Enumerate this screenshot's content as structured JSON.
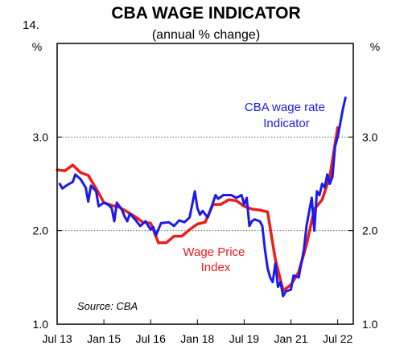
{
  "figure_number": "14.",
  "chart_data": {
    "type": "line",
    "title": "CBA WAGE INDICATOR",
    "subtitle": "(annual % change)",
    "y_unit_left": "%",
    "y_unit_right": "%",
    "ylim": [
      1.0,
      4.0
    ],
    "yticks": [
      "1.0",
      "2.0",
      "3.0"
    ],
    "xlim": [
      "2013-07",
      "2023-01"
    ],
    "xtick_labels": [
      "Jul 13",
      "Jan 15",
      "Jul 16",
      "Jan 18",
      "Jul 19",
      "Jan 21",
      "Jul 22"
    ],
    "xtick_dates": [
      "2013-07",
      "2015-01",
      "2016-07",
      "2018-01",
      "2019-07",
      "2021-01",
      "2022-07"
    ],
    "grid": "dotted horizontal at 2.0 and 3.0",
    "source": "Source: CBA",
    "series": [
      {
        "name": "Wage Price Index",
        "label_lines": [
          "Wage Price",
          "Index"
        ],
        "color": "#ee1c1c",
        "points": [
          [
            "2013-07",
            2.65
          ],
          [
            "2013-10",
            2.64
          ],
          [
            "2014-01",
            2.7
          ],
          [
            "2014-04",
            2.62
          ],
          [
            "2014-07",
            2.59
          ],
          [
            "2014-10",
            2.45
          ],
          [
            "2015-01",
            2.3
          ],
          [
            "2015-04",
            2.27
          ],
          [
            "2015-07",
            2.25
          ],
          [
            "2015-10",
            2.2
          ],
          [
            "2016-01",
            2.15
          ],
          [
            "2016-04",
            2.09
          ],
          [
            "2016-07",
            2.08
          ],
          [
            "2016-10",
            1.87
          ],
          [
            "2017-01",
            1.87
          ],
          [
            "2017-04",
            1.94
          ],
          [
            "2017-07",
            1.94
          ],
          [
            "2017-10",
            2.01
          ],
          [
            "2018-01",
            2.07
          ],
          [
            "2018-04",
            2.09
          ],
          [
            "2018-07",
            2.28
          ],
          [
            "2018-10",
            2.28
          ],
          [
            "2019-01",
            2.33
          ],
          [
            "2019-04",
            2.32
          ],
          [
            "2019-07",
            2.26
          ],
          [
            "2019-10",
            2.23
          ],
          [
            "2020-01",
            2.22
          ],
          [
            "2020-04",
            2.2
          ],
          [
            "2020-07",
            1.69
          ],
          [
            "2020-10",
            1.36
          ],
          [
            "2021-01",
            1.42
          ],
          [
            "2021-04",
            1.56
          ],
          [
            "2021-07",
            1.85
          ],
          [
            "2021-10",
            2.23
          ],
          [
            "2022-01",
            2.33
          ],
          [
            "2022-04",
            2.58
          ],
          [
            "2022-07",
            3.1
          ]
        ]
      },
      {
        "name": "CBA wage rate Indicator",
        "label_lines": [
          "CBA wage rate",
          "Indicator"
        ],
        "color": "#1a1aee",
        "points": [
          [
            "2013-08",
            2.5
          ],
          [
            "2013-09",
            2.45
          ],
          [
            "2013-11",
            2.49
          ],
          [
            "2014-01",
            2.52
          ],
          [
            "2014-02",
            2.6
          ],
          [
            "2014-04",
            2.55
          ],
          [
            "2014-06",
            2.46
          ],
          [
            "2014-07",
            2.31
          ],
          [
            "2014-08",
            2.48
          ],
          [
            "2014-10",
            2.42
          ],
          [
            "2014-11",
            2.26
          ],
          [
            "2015-01",
            2.3
          ],
          [
            "2015-03",
            2.27
          ],
          [
            "2015-04",
            2.24
          ],
          [
            "2015-05",
            2.1
          ],
          [
            "2015-06",
            2.3
          ],
          [
            "2015-08",
            2.22
          ],
          [
            "2015-09",
            2.15
          ],
          [
            "2015-10",
            2.1
          ],
          [
            "2015-11",
            2.18
          ],
          [
            "2016-01",
            2.12
          ],
          [
            "2016-03",
            2.05
          ],
          [
            "2016-05",
            2.1
          ],
          [
            "2016-07",
            2.01
          ],
          [
            "2016-08",
            2.04
          ],
          [
            "2016-09",
            1.95
          ],
          [
            "2016-11",
            2.08
          ],
          [
            "2017-02",
            2.09
          ],
          [
            "2017-04",
            2.05
          ],
          [
            "2017-06",
            2.11
          ],
          [
            "2017-08",
            2.09
          ],
          [
            "2017-10",
            2.14
          ],
          [
            "2017-12",
            2.42
          ],
          [
            "2018-01",
            2.24
          ],
          [
            "2018-02",
            2.17
          ],
          [
            "2018-03",
            2.21
          ],
          [
            "2018-05",
            2.14
          ],
          [
            "2018-07",
            2.3
          ],
          [
            "2018-08",
            2.38
          ],
          [
            "2018-09",
            2.34
          ],
          [
            "2018-11",
            2.38
          ],
          [
            "2019-02",
            2.38
          ],
          [
            "2019-04",
            2.35
          ],
          [
            "2019-06",
            2.38
          ],
          [
            "2019-07",
            2.28
          ],
          [
            "2019-08",
            2.35
          ],
          [
            "2019-09",
            2.05
          ],
          [
            "2019-10",
            2.1
          ],
          [
            "2019-11",
            2.12
          ],
          [
            "2020-01",
            2.1
          ],
          [
            "2020-02",
            2.05
          ],
          [
            "2020-03",
            1.8
          ],
          [
            "2020-04",
            1.6
          ],
          [
            "2020-05",
            1.5
          ],
          [
            "2020-06",
            1.45
          ],
          [
            "2020-07",
            1.65
          ],
          [
            "2020-08",
            1.4
          ],
          [
            "2020-09",
            1.45
          ],
          [
            "2020-10",
            1.3
          ],
          [
            "2020-11",
            1.35
          ],
          [
            "2021-01",
            1.37
          ],
          [
            "2021-02",
            1.52
          ],
          [
            "2021-04",
            1.5
          ],
          [
            "2021-05",
            1.65
          ],
          [
            "2021-06",
            1.8
          ],
          [
            "2021-07",
            2.05
          ],
          [
            "2021-08",
            2.2
          ],
          [
            "2021-09",
            2.35
          ],
          [
            "2021-10",
            2.0
          ],
          [
            "2021-11",
            2.42
          ],
          [
            "2021-12",
            2.38
          ],
          [
            "2022-01",
            2.5
          ],
          [
            "2022-02",
            2.46
          ],
          [
            "2022-03",
            2.6
          ],
          [
            "2022-04",
            2.5
          ],
          [
            "2022-05",
            2.58
          ],
          [
            "2022-06",
            2.9
          ],
          [
            "2022-07",
            3.0
          ],
          [
            "2022-08",
            3.15
          ],
          [
            "2022-09",
            3.3
          ],
          [
            "2022-10",
            3.42
          ]
        ]
      }
    ]
  }
}
